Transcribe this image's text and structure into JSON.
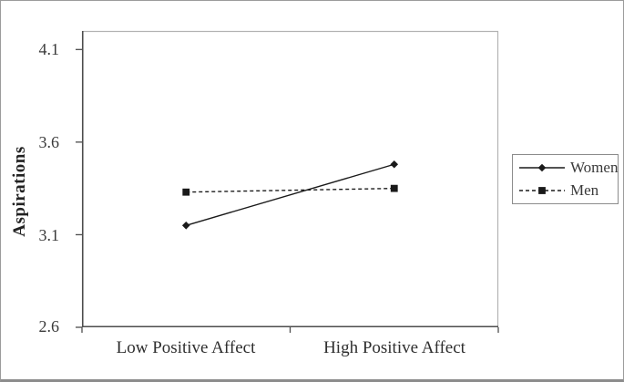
{
  "chart_data": {
    "type": "line",
    "title": "",
    "categories": [
      "Low Positive Affect",
      "High Positive Affect"
    ],
    "series": [
      {
        "name": "Women",
        "values": [
          3.15,
          3.48
        ],
        "line_style": "solid",
        "marker": "diamond",
        "color": "#1a1a1a"
      },
      {
        "name": "Men",
        "values": [
          3.33,
          3.35
        ],
        "line_style": "dashed",
        "marker": "square",
        "color": "#1a1a1a"
      }
    ],
    "xlabel": "",
    "ylabel": "Aspirations",
    "ylim": [
      2.6,
      4.2
    ],
    "yticks": [
      2.6,
      3.1,
      3.6,
      4.1
    ],
    "ytick_labels_top_to_bottom": [
      "4.1",
      "3.6",
      "3.1",
      "2.6"
    ],
    "grid": false,
    "legend_position": "right-outside"
  },
  "colors": {
    "axis": "#4d4d4d",
    "frame_light": "#b3b3b3",
    "legend_border": "#8c8c8c",
    "outer_border": "#9b9b9b",
    "text": "#2e2e2e"
  }
}
